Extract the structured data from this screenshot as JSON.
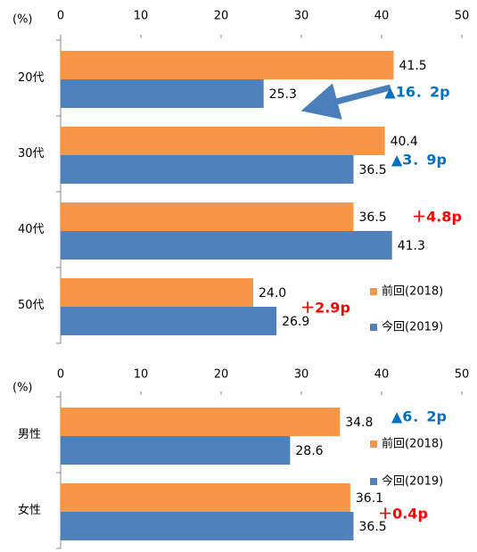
{
  "chart_data": [
    {
      "type": "bar",
      "orientation": "horizontal",
      "unit_label": "(%)",
      "categories": [
        "20代",
        "30代",
        "40代",
        "50代"
      ],
      "series": [
        {
          "name": "前回(2018)",
          "color": "#f79646",
          "values": [
            41.5,
            40.4,
            36.5,
            24.0
          ],
          "value_labels": [
            "41.5",
            "40.4",
            "36.5",
            "24.0"
          ]
        },
        {
          "name": "今回(2019)",
          "color": "#4f81bd",
          "values": [
            25.3,
            36.5,
            41.3,
            26.9
          ],
          "value_labels": [
            "25.3",
            "36.5",
            "41.3",
            "26.9"
          ]
        }
      ],
      "xlim": [
        0,
        50
      ],
      "xticks": [
        0,
        10,
        20,
        30,
        40,
        50
      ],
      "grid": false,
      "annotations": [
        {
          "text": "▲16．2p",
          "color": "#0070c0"
        },
        {
          "text": "▲3．9p",
          "color": "#0070c0"
        },
        {
          "text": "＋4.8p",
          "color": "#ff0000"
        },
        {
          "text": "＋2.9p",
          "color": "#ff0000"
        }
      ]
    },
    {
      "type": "bar",
      "orientation": "horizontal",
      "unit_label": "(%)",
      "categories": [
        "男性",
        "女性"
      ],
      "series": [
        {
          "name": "前回(2018)",
          "color": "#f79646",
          "values": [
            34.8,
            36.1
          ],
          "value_labels": [
            "34.8",
            "36.1"
          ]
        },
        {
          "name": "今回(2019)",
          "color": "#4f81bd",
          "values": [
            28.6,
            36.5
          ],
          "value_labels": [
            "28.6",
            "36.5"
          ]
        }
      ],
      "xlim": [
        0,
        50
      ],
      "xticks": [
        0,
        10,
        20,
        30,
        40,
        50
      ],
      "grid": false,
      "annotations": [
        {
          "text": "▲6．2p",
          "color": "#0070c0"
        },
        {
          "text": "＋0.4p",
          "color": "#ff0000"
        }
      ]
    }
  ]
}
